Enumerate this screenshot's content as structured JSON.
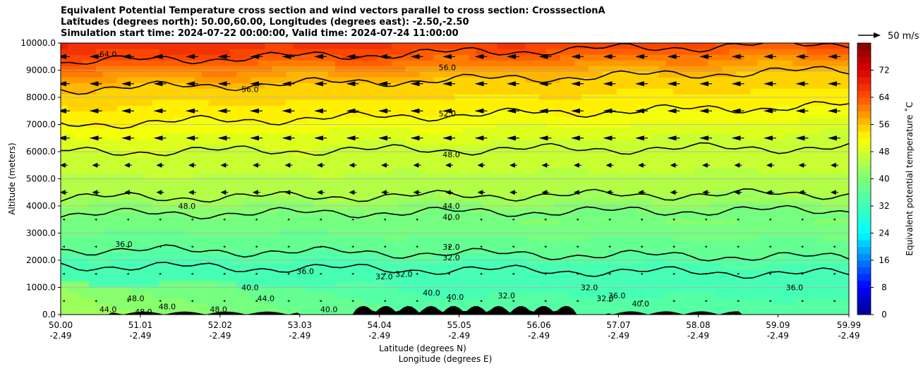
{
  "chart_data": {
    "type": "heatmap",
    "title_lines": [
      "Equivalent Potential Temperature cross section and wind vectors parallel to cross section: CrosssectionA",
      "Latitudes (degrees north): 50.00,60.00, Longitudes (degrees east): -2.50,-2.50",
      "Simulation start time: 2024-07-22 00:00:00, Valid time: 2024-07-24 11:00:00"
    ],
    "ylabel": "Altitude (meters)",
    "xlabel_lat": "Latitude (degrees N)",
    "xlabel_lon": "Longitude (degrees E)",
    "ylim": [
      0,
      10000
    ],
    "yticks": [
      "0.0",
      "1000.0",
      "2000.0",
      "3000.0",
      "4000.0",
      "5000.0",
      "6000.0",
      "7000.0",
      "8000.0",
      "9000.0",
      "10000.0"
    ],
    "xticks_lat": [
      "50.00",
      "51.01",
      "52.02",
      "53.03",
      "54.04",
      "55.05",
      "56.06",
      "57.07",
      "58.08",
      "59.09",
      "59.99"
    ],
    "xticks_lon": [
      "-2.49",
      "-2.49",
      "-2.49",
      "-2.49",
      "-2.49",
      "-2.49",
      "-2.49",
      "-2.49",
      "-2.49",
      "-2.49",
      "-2.49"
    ],
    "colorbar": {
      "label": "Equivalent potential temperature ˚C",
      "range": [
        0,
        80
      ],
      "ticks": [
        "0",
        "8",
        "16",
        "24",
        "32",
        "40",
        "48",
        "56",
        "64",
        "72"
      ]
    },
    "quiver_key": "50 m/s",
    "contours": [
      {
        "level": "64.0",
        "alt": 9300
      },
      {
        "level": "56.0",
        "alt": 8300
      },
      {
        "level": "52.0",
        "alt": 7000
      },
      {
        "level": "48.0",
        "alt": 6000
      },
      {
        "level": "44.0",
        "alt": 4300
      },
      {
        "level": "40.0",
        "alt": 3700
      },
      {
        "level": "36.0",
        "alt": 2400
      },
      {
        "level": "32.0",
        "alt": 1800
      }
    ],
    "contour_labels": [
      {
        "text": "64.0",
        "lat": 50.6,
        "alt": 9600
      },
      {
        "text": "56.0",
        "lat": 52.4,
        "alt": 8300
      },
      {
        "text": "56.0",
        "lat": 54.9,
        "alt": 9100
      },
      {
        "text": "52.0",
        "lat": 54.9,
        "alt": 7400
      },
      {
        "text": "48.0",
        "lat": 54.95,
        "alt": 5900
      },
      {
        "text": "48.0",
        "lat": 51.6,
        "alt": 4000
      },
      {
        "text": "44.0",
        "lat": 54.95,
        "alt": 4000
      },
      {
        "text": "40.0",
        "lat": 54.95,
        "alt": 3600
      },
      {
        "text": "32.0",
        "lat": 54.95,
        "alt": 2500
      },
      {
        "text": "32.0",
        "lat": 54.95,
        "alt": 2100
      },
      {
        "text": "36.0",
        "lat": 50.8,
        "alt": 2600
      },
      {
        "text": "36.0",
        "lat": 53.1,
        "alt": 1600
      },
      {
        "text": "32.0",
        "lat": 54.1,
        "alt": 1400
      },
      {
        "text": "32.0",
        "lat": 54.35,
        "alt": 1500
      },
      {
        "text": "40.0",
        "lat": 52.4,
        "alt": 1000
      },
      {
        "text": "44.0",
        "lat": 52.6,
        "alt": 600
      },
      {
        "text": "48.0",
        "lat": 50.95,
        "alt": 600
      },
      {
        "text": "48.0",
        "lat": 51.35,
        "alt": 300
      },
      {
        "text": "48.0",
        "lat": 52.0,
        "alt": 200
      },
      {
        "text": "44.0",
        "lat": 50.6,
        "alt": 200
      },
      {
        "text": "48.0",
        "lat": 51.05,
        "alt": 100
      },
      {
        "text": "40.0",
        "lat": 53.4,
        "alt": 200
      },
      {
        "text": "40.0",
        "lat": 54.7,
        "alt": 800
      },
      {
        "text": "40.0",
        "lat": 55.0,
        "alt": 650
      },
      {
        "text": "32.0",
        "lat": 55.65,
        "alt": 700
      },
      {
        "text": "32.0",
        "lat": 56.7,
        "alt": 1000
      },
      {
        "text": "32.0",
        "lat": 56.9,
        "alt": 600
      },
      {
        "text": "36.0",
        "lat": 57.05,
        "alt": 700
      },
      {
        "text": "36.0",
        "lat": 59.3,
        "alt": 1000
      },
      {
        "text": "40.0",
        "lat": 57.35,
        "alt": 400
      }
    ]
  }
}
